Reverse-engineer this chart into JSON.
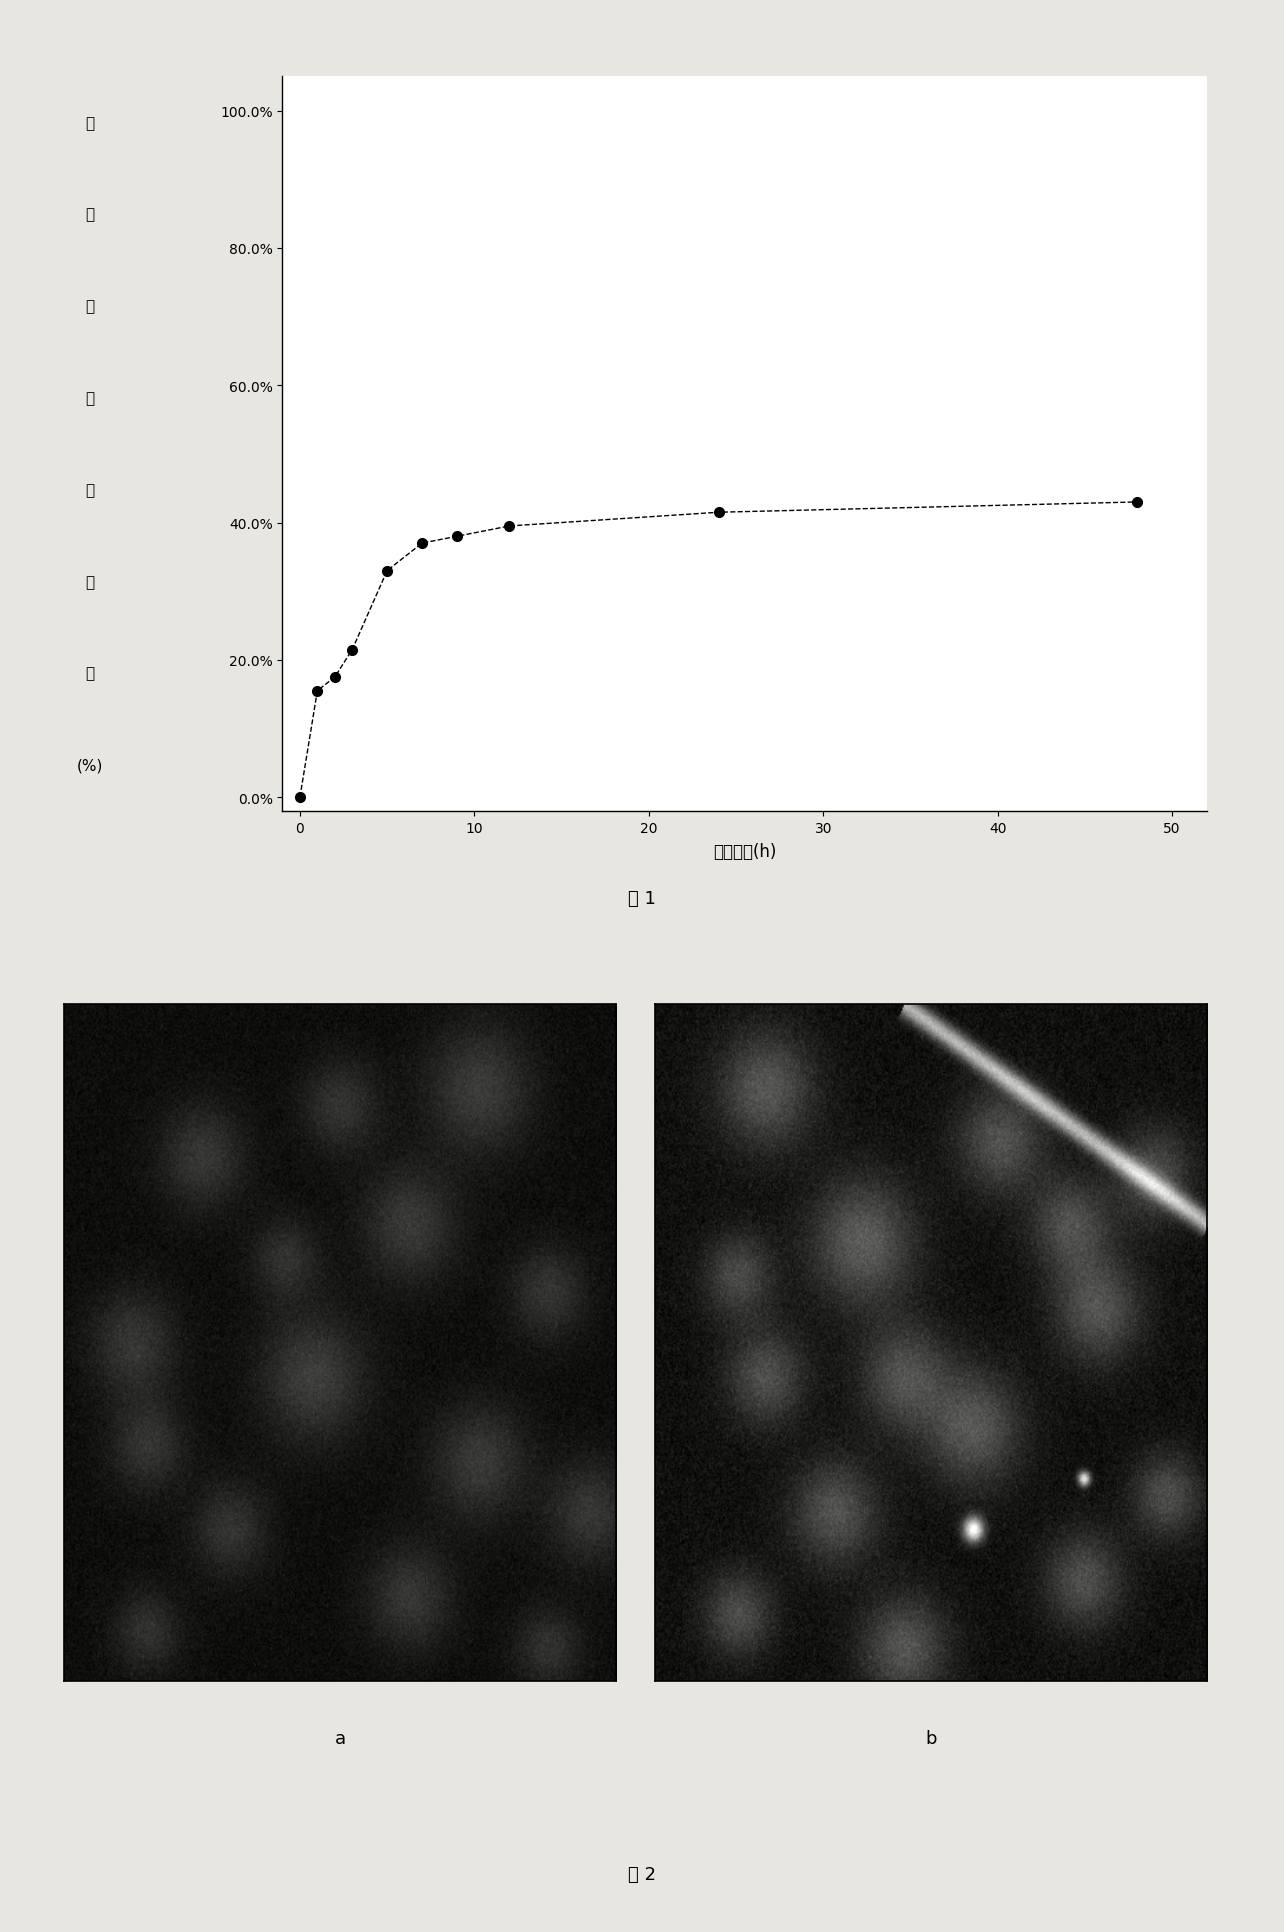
{
  "x_data": [
    0,
    1,
    2,
    3,
    5,
    7,
    9,
    12,
    24,
    48
  ],
  "y_data": [
    0.0,
    0.155,
    0.175,
    0.215,
    0.33,
    0.37,
    0.38,
    0.395,
    0.415,
    0.43
  ],
  "xlabel": "释放时间(h)",
  "ylabel_chars": [
    "累",
    "积",
    "释",
    "放",
    "百",
    "分",
    "比",
    "(%)"
  ],
  "yticks": [
    0.0,
    0.2,
    0.4,
    0.6,
    0.8,
    1.0
  ],
  "ytick_labels": [
    "0.0%",
    "20.0%",
    "40.0%",
    "60.0%",
    "80.0%",
    "100.0%"
  ],
  "xticks": [
    0,
    10,
    20,
    30,
    40,
    50
  ],
  "xlim": [
    -1,
    52
  ],
  "ylim": [
    -0.02,
    1.05
  ],
  "fig1_caption": "图 1",
  "fig2_caption": "图 2",
  "label_a": "a",
  "label_b": "b",
  "line_color": "black",
  "marker_color": "black",
  "line_style": "--",
  "marker_style": "o",
  "marker_size": 7,
  "bg_color": "#e8e6e0",
  "plot_bg": "#ffffff"
}
